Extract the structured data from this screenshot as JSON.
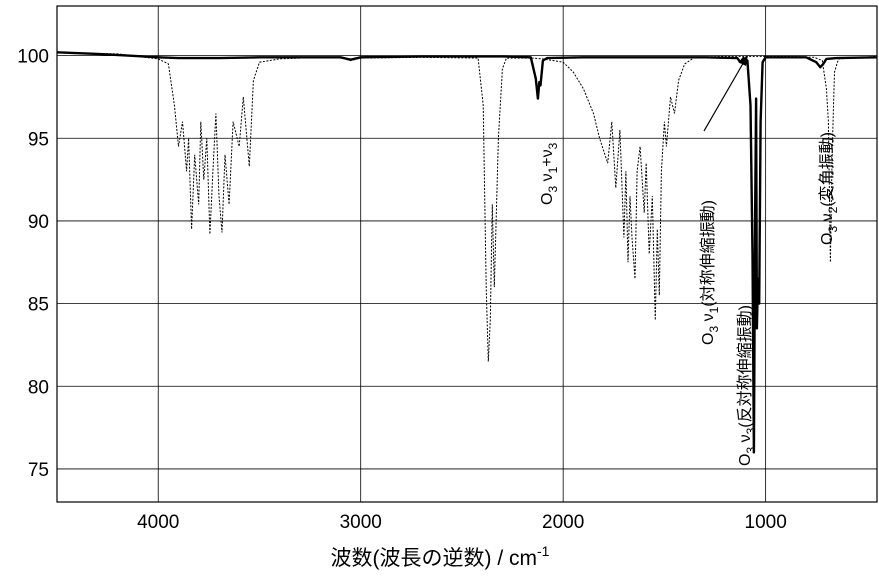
{
  "chart_data": {
    "type": "line",
    "title": "",
    "xlabel": "波数(波長の逆数) / cm",
    "xlabel_sup": "-1",
    "ylabel": "",
    "xlim": [
      4500,
      450
    ],
    "ylim": [
      73,
      103
    ],
    "x_ticks": [
      4000,
      3000,
      2000,
      1000
    ],
    "x_tick_labels": [
      "4000",
      "3000",
      "2000",
      "1000"
    ],
    "y_ticks": [
      75,
      80,
      85,
      90,
      95,
      100
    ],
    "y_tick_labels": [
      "75",
      "80",
      "85",
      "90",
      "95",
      "100"
    ],
    "grid": true,
    "legend": "none",
    "series": [
      {
        "style": "solid",
        "color": "#000000",
        "points": [
          [
            4500,
            100.2
          ],
          [
            4300,
            100.1
          ],
          [
            4150,
            100.0
          ],
          [
            4000,
            99.9
          ],
          [
            3900,
            99.85
          ],
          [
            3700,
            99.85
          ],
          [
            3500,
            99.9
          ],
          [
            3100,
            99.9
          ],
          [
            3050,
            99.75
          ],
          [
            3000,
            99.9
          ],
          [
            2700,
            99.95
          ],
          [
            2300,
            99.95
          ],
          [
            2160,
            99.9
          ],
          [
            2135,
            98.6
          ],
          [
            2125,
            97.4
          ],
          [
            2118,
            98.4
          ],
          [
            2112,
            98.2
          ],
          [
            2100,
            99.7
          ],
          [
            2080,
            99.85
          ],
          [
            1900,
            99.9
          ],
          [
            1500,
            99.9
          ],
          [
            1300,
            99.9
          ],
          [
            1140,
            99.85
          ],
          [
            1125,
            99.6
          ],
          [
            1110,
            99.85
          ],
          [
            1090,
            99.7
          ],
          [
            1075,
            97.0
          ],
          [
            1065,
            88.0
          ],
          [
            1058,
            76.0
          ],
          [
            1052,
            90.0
          ],
          [
            1047,
            97.4
          ],
          [
            1043,
            83.5
          ],
          [
            1038,
            86.5
          ],
          [
            1032,
            85.0
          ],
          [
            1025,
            96.0
          ],
          [
            1015,
            99.6
          ],
          [
            1000,
            99.9
          ],
          [
            800,
            99.9
          ],
          [
            750,
            99.6
          ],
          [
            730,
            99.3
          ],
          [
            715,
            99.5
          ],
          [
            700,
            99.8
          ],
          [
            650,
            99.85
          ],
          [
            450,
            99.9
          ]
        ]
      },
      {
        "style": "dotted",
        "color": "#000000",
        "points": [
          [
            4500,
            100.2
          ],
          [
            4400,
            100.15
          ],
          [
            4200,
            100.1
          ],
          [
            4100,
            99.95
          ],
          [
            4000,
            99.8
          ],
          [
            3950,
            99.5
          ],
          [
            3920,
            97.0
          ],
          [
            3900,
            94.5
          ],
          [
            3880,
            96.0
          ],
          [
            3860,
            93.0
          ],
          [
            3850,
            95.0
          ],
          [
            3835,
            89.5
          ],
          [
            3820,
            94.0
          ],
          [
            3800,
            91.0
          ],
          [
            3790,
            96.0
          ],
          [
            3775,
            92.5
          ],
          [
            3760,
            95.0
          ],
          [
            3745,
            89.2
          ],
          [
            3730,
            93.0
          ],
          [
            3715,
            96.5
          ],
          [
            3700,
            91.5
          ],
          [
            3685,
            89.3
          ],
          [
            3670,
            94.0
          ],
          [
            3650,
            91.0
          ],
          [
            3630,
            96.0
          ],
          [
            3600,
            94.5
          ],
          [
            3580,
            97.5
          ],
          [
            3550,
            93.3
          ],
          [
            3530,
            98.5
          ],
          [
            3500,
            99.6
          ],
          [
            3400,
            99.8
          ],
          [
            3200,
            99.9
          ],
          [
            3100,
            99.9
          ],
          [
            3050,
            99.7
          ],
          [
            3000,
            99.85
          ],
          [
            2700,
            99.9
          ],
          [
            2420,
            99.85
          ],
          [
            2395,
            97.0
          ],
          [
            2380,
            86.0
          ],
          [
            2370,
            81.5
          ],
          [
            2360,
            84.0
          ],
          [
            2350,
            91.0
          ],
          [
            2340,
            86.0
          ],
          [
            2320,
            95.0
          ],
          [
            2300,
            99.2
          ],
          [
            2280,
            99.85
          ],
          [
            2150,
            99.85
          ],
          [
            2100,
            99.8
          ],
          [
            2000,
            99.6
          ],
          [
            1950,
            99.0
          ],
          [
            1900,
            98.0
          ],
          [
            1850,
            96.5
          ],
          [
            1820,
            95.0
          ],
          [
            1780,
            93.5
          ],
          [
            1760,
            96.0
          ],
          [
            1740,
            92.0
          ],
          [
            1720,
            95.5
          ],
          [
            1700,
            89.0
          ],
          [
            1690,
            93.0
          ],
          [
            1680,
            87.5
          ],
          [
            1670,
            91.5
          ],
          [
            1660,
            89.0
          ],
          [
            1645,
            86.5
          ],
          [
            1635,
            93.0
          ],
          [
            1620,
            94.5
          ],
          [
            1600,
            90.5
          ],
          [
            1590,
            93.5
          ],
          [
            1575,
            88.0
          ],
          [
            1560,
            91.5
          ],
          [
            1545,
            84.0
          ],
          [
            1535,
            89.5
          ],
          [
            1525,
            85.5
          ],
          [
            1515,
            93.0
          ],
          [
            1500,
            96.0
          ],
          [
            1490,
            94.5
          ],
          [
            1470,
            97.5
          ],
          [
            1450,
            96.5
          ],
          [
            1430,
            98.5
          ],
          [
            1400,
            99.5
          ],
          [
            1350,
            99.9
          ],
          [
            1200,
            99.95
          ],
          [
            900,
            99.95
          ],
          [
            760,
            99.9
          ],
          [
            720,
            99.7
          ],
          [
            700,
            98.0
          ],
          [
            690,
            96.0
          ],
          [
            680,
            87.5
          ],
          [
            672,
            94.0
          ],
          [
            660,
            99.0
          ],
          [
            640,
            99.8
          ],
          [
            450,
            99.95
          ]
        ]
      }
    ],
    "annotations": [
      {
        "text": "O",
        "sub": "3",
        "label": " ν",
        "label_sub": "1",
        "tail": "+ν",
        "tail_sub": "3"
      },
      {
        "text": "O",
        "sub": "3",
        "label": " ν",
        "label_sub": "1",
        "tail": "(対称伸縮振動)"
      },
      {
        "text": "O",
        "sub": "3",
        "label": " ν",
        "label_sub": "3",
        "tail": "(反対称伸縮振動)"
      },
      {
        "text": "O",
        "sub": "3",
        "label": " ν",
        "label_sub": "2",
        "tail": "(変角振動)"
      }
    ]
  }
}
